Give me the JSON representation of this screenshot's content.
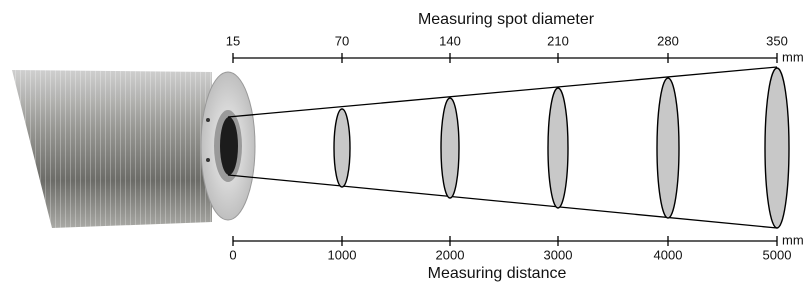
{
  "title": "Measuring spot diameter",
  "top_axis": {
    "labels": [
      15,
      70,
      140,
      210,
      280,
      350
    ],
    "unit": "mm"
  },
  "bottom_axis": {
    "labels": [
      0,
      1000,
      2000,
      3000,
      4000,
      5000
    ],
    "unit": "mm"
  },
  "footer": "Measuring distance"
}
